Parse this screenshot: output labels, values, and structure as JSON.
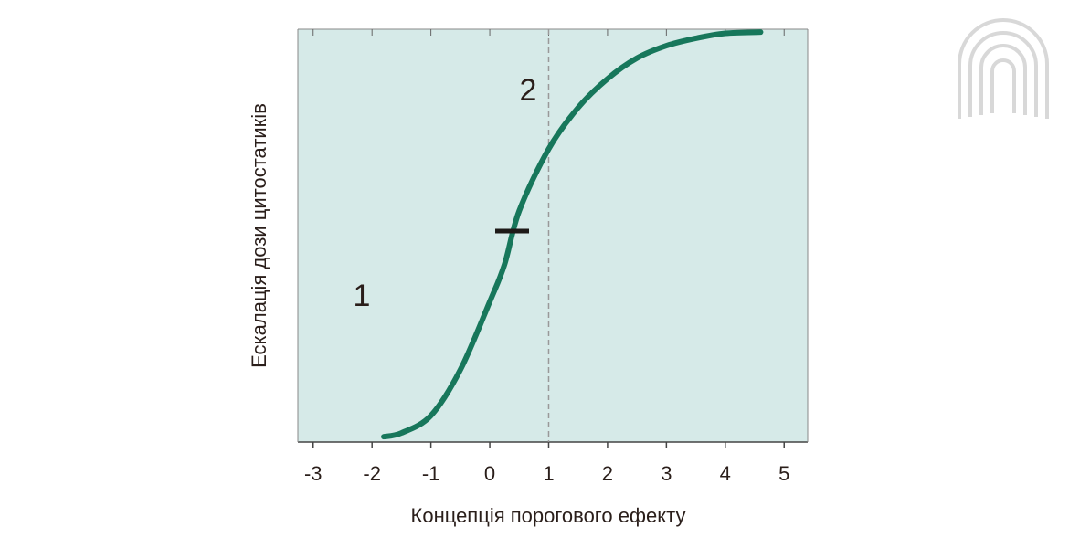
{
  "chart_data": {
    "type": "line",
    "x_label": "Концепція порогового ефекту",
    "y_label": "Ескалація дози цитостатиків",
    "x": [
      -1.8,
      -1.5,
      -1,
      -0.5,
      0,
      0.25,
      0.5,
      1,
      1.5,
      2,
      2.5,
      3,
      3.5,
      4,
      4.6
    ],
    "series": [
      {
        "color": "#17775b",
        "values": [
          0.013,
          0.022,
          0.064,
          0.175,
          0.34,
          0.43,
          0.56,
          0.71,
          0.81,
          0.88,
          0.93,
          0.96,
          0.978,
          0.99,
          0.993
        ]
      }
    ],
    "xlim": [
      -3.26,
      5.4
    ],
    "ylim": [
      0,
      1
    ],
    "xticks": [
      -3,
      -2,
      -1,
      0,
      1,
      2,
      3,
      4,
      5
    ],
    "reference_line_x": 1,
    "annotations": [
      "1",
      "2"
    ],
    "background": "#d6eae8"
  }
}
